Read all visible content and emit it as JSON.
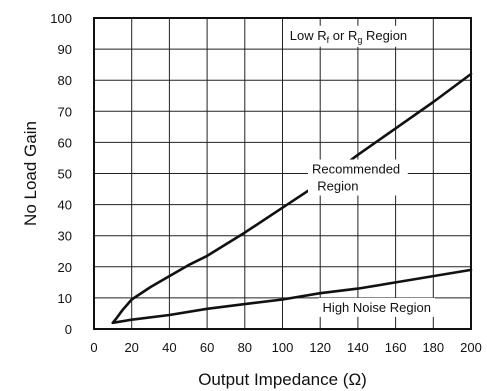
{
  "chart_data": {
    "type": "line",
    "xlabel": "Output Impedance (Ω)",
    "ylabel": "No Load Gain",
    "xlim": [
      0,
      200
    ],
    "ylim": [
      0,
      100
    ],
    "grid": true,
    "x_ticks": [
      "0",
      "20",
      "40",
      "60",
      "80",
      "100",
      "120",
      "140",
      "160",
      "180",
      "200"
    ],
    "y_ticks": [
      "0",
      "10",
      "20",
      "30",
      "40",
      "50",
      "60",
      "70",
      "80",
      "90",
      "100"
    ],
    "series": [
      {
        "x": [
          10,
          12,
          15,
          20,
          30,
          40,
          50,
          60,
          80,
          100,
          120,
          140,
          160,
          180,
          200
        ],
        "y": [
          2,
          3.5,
          6,
          9.5,
          13.5,
          17,
          20.5,
          23.5,
          31,
          39,
          47,
          56,
          64.5,
          73,
          82
        ]
      },
      {
        "x": [
          10,
          20,
          40,
          60,
          80,
          100,
          120,
          140,
          160,
          180,
          200
        ],
        "y": [
          2,
          3,
          4.5,
          6.5,
          8,
          9.5,
          11.5,
          13,
          15,
          17,
          19
        ]
      }
    ],
    "annotations": [
      {
        "text": "Low R",
        "sub1": "f",
        "mid": " or R",
        "sub2": "g",
        "tail": " Region",
        "x": 135,
        "y": 93
      },
      {
        "line1": "Recommended",
        "line2": "Region",
        "x": 140,
        "y": 50
      },
      {
        "text": "High Noise Region",
        "x": 150,
        "y": 5.5
      }
    ]
  }
}
